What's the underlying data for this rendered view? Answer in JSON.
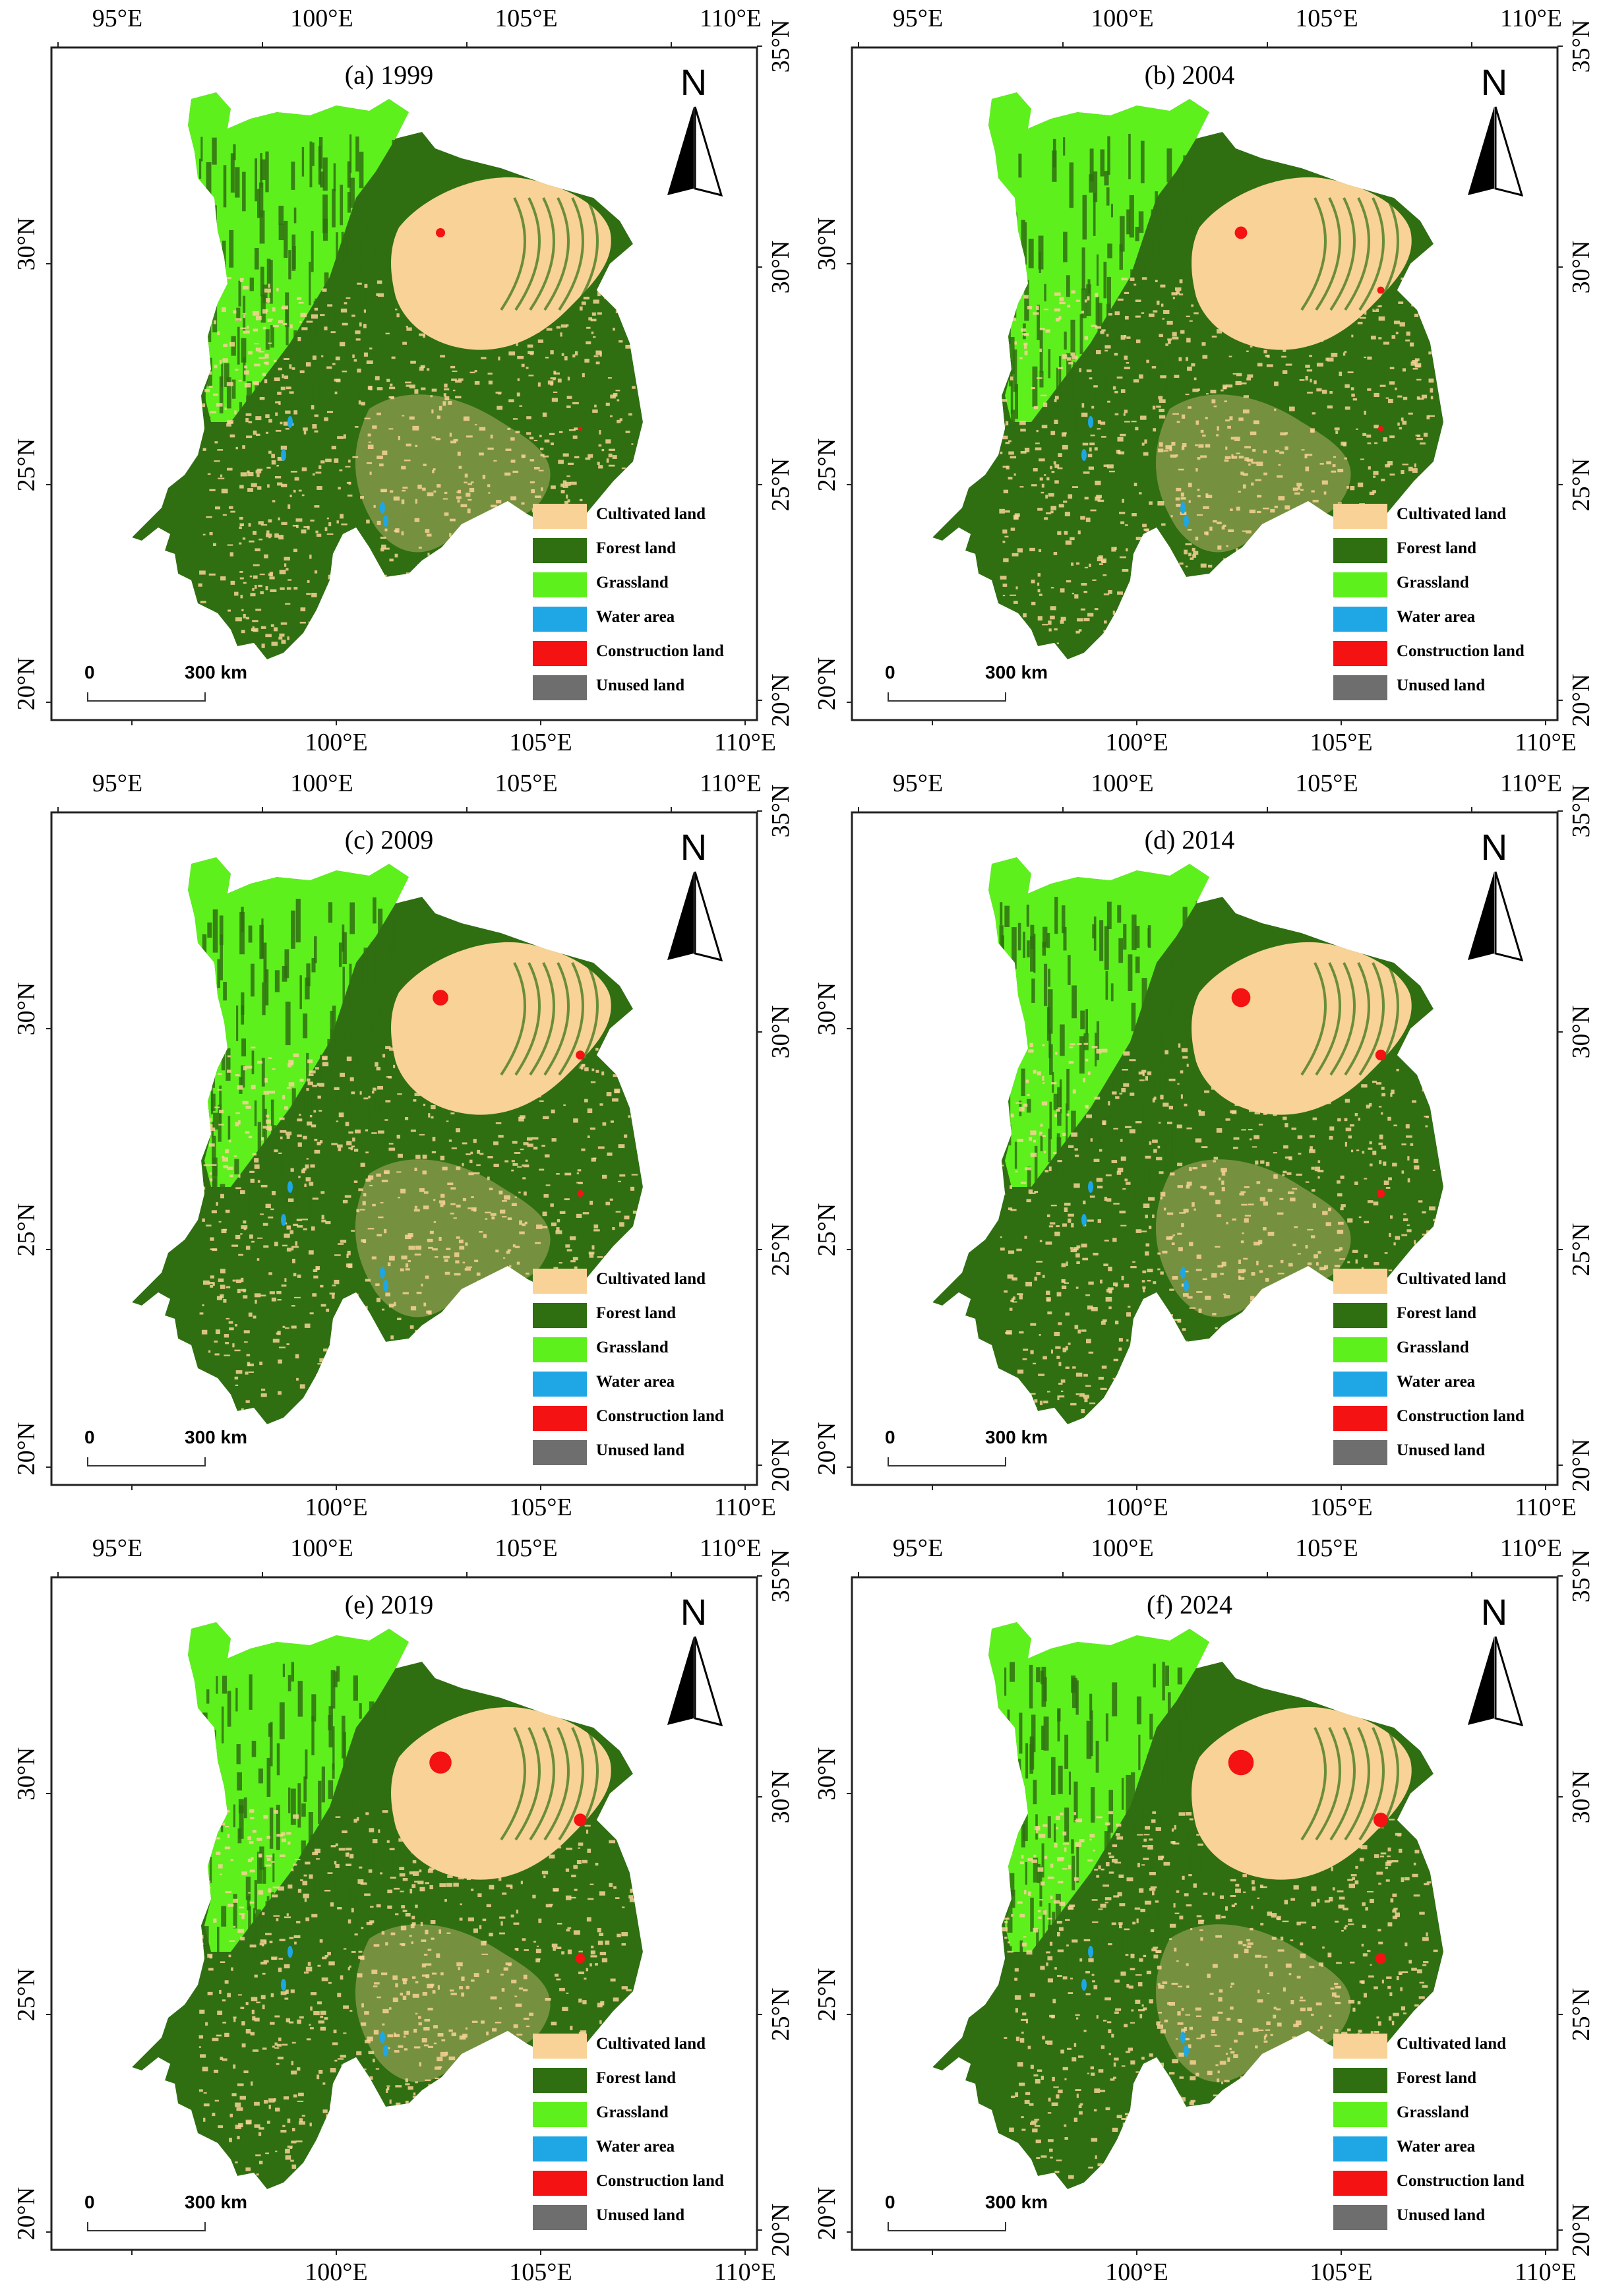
{
  "colors": {
    "cultivated": "#f8d296",
    "forest": "#2f6f12",
    "grassland": "#5ef01c",
    "water": "#1ea7e4",
    "construction": "#f41212",
    "unused": "#6e6e6e"
  },
  "axes": {
    "lon_ticks": [
      "95°E",
      "100°E",
      "105°E",
      "110°E"
    ],
    "lat_ticks": [
      "35°N",
      "30°N",
      "25°N",
      "20°N"
    ]
  },
  "legend": [
    {
      "label": "Cultivated land",
      "color_key": "cultivated"
    },
    {
      "label": "Forest land",
      "color_key": "forest"
    },
    {
      "label": "Grassland",
      "color_key": "grassland"
    },
    {
      "label": "Water area",
      "color_key": "water"
    },
    {
      "label": "Construction land",
      "color_key": "construction"
    },
    {
      "label": "Unused land",
      "color_key": "unused"
    }
  ],
  "north_arrow": {
    "label": "N",
    "icon": "north-arrow-icon"
  },
  "scale_bar": {
    "start": "0",
    "end": "300 km"
  },
  "panels": [
    {
      "title": "(a) 1999",
      "year": 1999
    },
    {
      "title": "(b) 2004",
      "year": 2004
    },
    {
      "title": "(c) 2009",
      "year": 2009
    },
    {
      "title": "(d) 2014",
      "year": 2014
    },
    {
      "title": "(e) 2019",
      "year": 2019
    },
    {
      "title": "(f) 2024",
      "year": 2024
    }
  ]
}
